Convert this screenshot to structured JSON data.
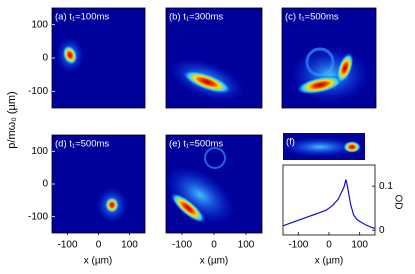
{
  "panels": [
    {
      "label": "(a) t₁=100ms"
    },
    {
      "label": "(b) t₁=300ms"
    },
    {
      "label": "(c) t₁=500ms"
    },
    {
      "label": "(d) t₁=500ms"
    },
    {
      "label": "(e) t₁=500ms"
    },
    {
      "label": "(f)"
    }
  ],
  "y_label": "p/mω₀ (µm)",
  "x_label": "x (µm)",
  "xlim": [
    -150,
    150
  ],
  "xticks": [
    -100,
    0,
    100
  ],
  "ylim": [
    -150,
    150
  ],
  "yticks": [
    100,
    0,
    -100
  ],
  "profile": {
    "y_label": "OD",
    "ylim": [
      -0.011,
      0.148
    ],
    "yticks": [
      0.1,
      0
    ],
    "x": [
      -150,
      -130,
      -110,
      -90,
      -70,
      -50,
      -30,
      -10,
      10,
      30,
      40,
      50,
      55,
      60,
      70,
      80,
      90,
      100,
      120,
      140,
      150
    ],
    "values": [
      0.01,
      0.015,
      0.02,
      0.025,
      0.03,
      0.035,
      0.04,
      0.045,
      0.055,
      0.07,
      0.085,
      0.1,
      0.115,
      0.1,
      0.06,
      0.035,
      0.025,
      0.02,
      0.012,
      0.006,
      0.004
    ]
  }
}
